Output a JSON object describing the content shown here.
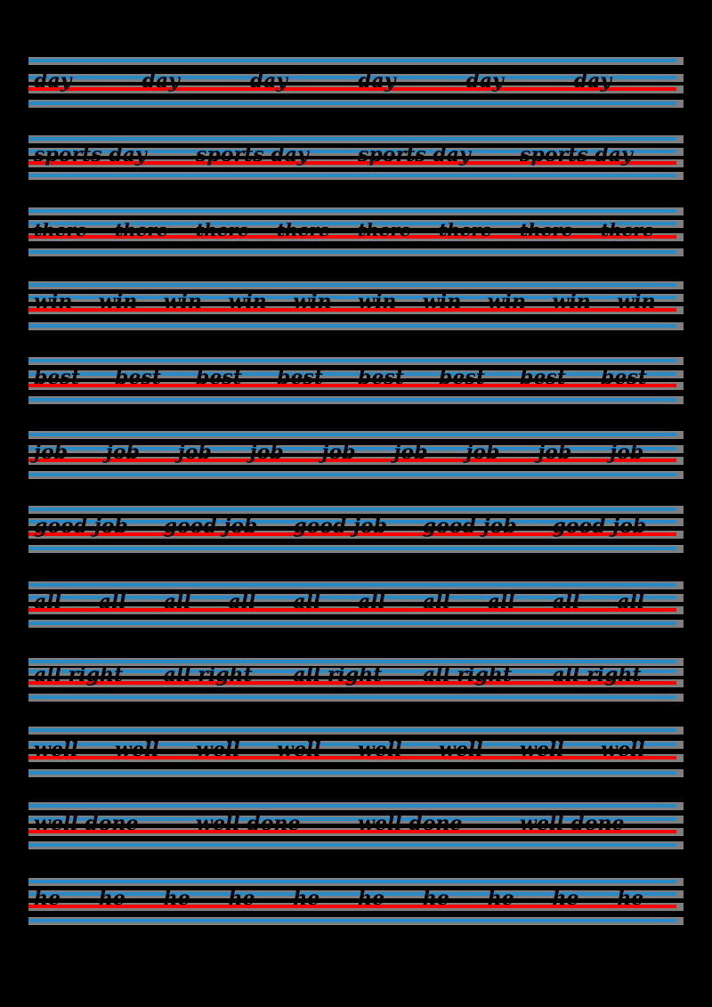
{
  "worksheet": {
    "colors": {
      "band": "#7f7f7f",
      "guide": "#2a8ac8",
      "baseline": "#ff0000",
      "background": "#000000"
    },
    "rows": [
      {
        "word": "day",
        "count": 6,
        "lines": [
          66,
          85,
          98,
          114
        ],
        "size": 22
      },
      {
        "word": "sports day",
        "count": 4,
        "lines": [
          154,
          168,
          181,
          195
        ],
        "size": 22
      },
      {
        "word": "there",
        "count": 8,
        "lines": [
          235,
          249,
          264,
          281
        ],
        "size": 20
      },
      {
        "word": "win",
        "count": 10,
        "lines": [
          318,
          332,
          346,
          364
        ],
        "size": 22
      },
      {
        "word": "best",
        "count": 8,
        "lines": [
          403,
          418,
          431,
          447
        ],
        "size": 22
      },
      {
        "word": "job",
        "count": 9,
        "lines": [
          486,
          502,
          515,
          531
        ],
        "size": 22
      },
      {
        "word": "good job",
        "count": 5,
        "lines": [
          570,
          584,
          598,
          614
        ],
        "size": 22
      },
      {
        "word": "all",
        "count": 10,
        "lines": [
          655,
          669,
          683,
          698
        ],
        "size": 22
      },
      {
        "word": "all right",
        "count": 5,
        "lines": [
          741,
          752,
          765,
          781
        ],
        "size": 22
      },
      {
        "word": "well",
        "count": 8,
        "lines": [
          818,
          834,
          849,
          866
        ],
        "size": 22
      },
      {
        "word": "well done",
        "count": 4,
        "lines": [
          903,
          918,
          932,
          947
        ],
        "size": 22
      },
      {
        "word": "he",
        "count": 10,
        "lines": [
          988,
          1002,
          1016,
          1032
        ],
        "size": 22
      }
    ]
  }
}
